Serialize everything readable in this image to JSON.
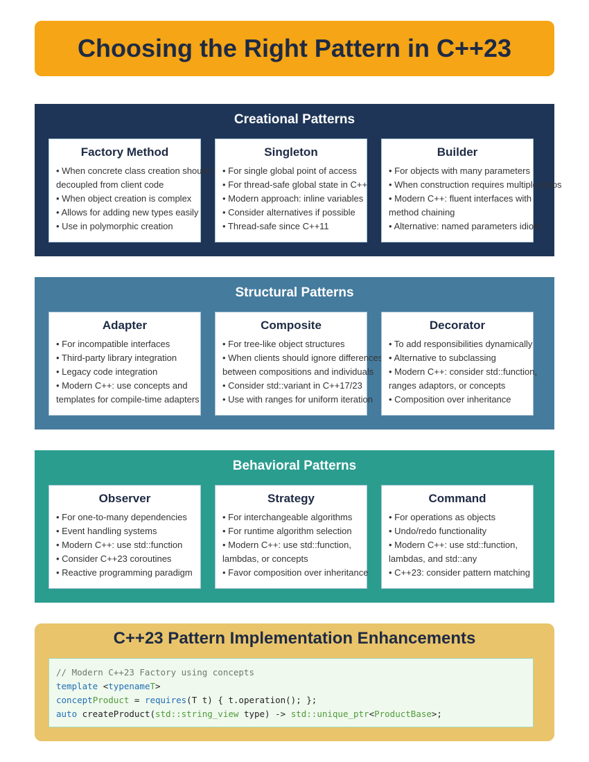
{
  "title": "Choosing the Right Pattern in C++23",
  "colors": {
    "title_banner": "#f5a515",
    "creational": "#1e3557",
    "structural": "#457b9d",
    "behavioral": "#2a9d8f",
    "enhancements": "#e9c46a"
  },
  "sections": [
    {
      "title": "Creational Patterns",
      "cards": [
        {
          "title": "Factory Method",
          "items": [
            "• When concrete class creation should be",
            "decoupled from client code",
            "• When object creation is complex",
            "• Allows for adding new types easily",
            "• Use in polymorphic creation"
          ]
        },
        {
          "title": "Singleton",
          "items": [
            "• For single global point of access",
            "• For thread-safe global state in C++",
            "• Modern approach: inline variables",
            "• Consider alternatives if possible",
            "• Thread-safe since C++11"
          ]
        },
        {
          "title": "Builder",
          "items": [
            "• For objects with many parameters",
            "• When construction requires multiple steps",
            "• Modern C++: fluent interfaces with",
            "method chaining",
            "• Alternative: named parameters idiom"
          ]
        }
      ]
    },
    {
      "title": "Structural Patterns",
      "cards": [
        {
          "title": "Adapter",
          "items": [
            "• For incompatible interfaces",
            "• Third-party library integration",
            "• Legacy code integration",
            "• Modern C++: use concepts and",
            "templates for compile-time adapters"
          ]
        },
        {
          "title": "Composite",
          "items": [
            "• For tree-like object structures",
            "• When clients should ignore differences",
            "between compositions and individuals",
            "• Consider std::variant in C++17/23",
            "• Use with ranges for uniform iteration"
          ]
        },
        {
          "title": "Decorator",
          "items": [
            "• To add responsibilities dynamically",
            "• Alternative to subclassing",
            "• Modern C++: consider std::function,",
            "ranges adaptors, or concepts",
            "• Composition over inheritance"
          ]
        }
      ]
    },
    {
      "title": "Behavioral Patterns",
      "cards": [
        {
          "title": "Observer",
          "items": [
            "• For one-to-many dependencies",
            "• Event handling systems",
            "• Modern C++: use std::function",
            "• Consider C++23 coroutines",
            "• Reactive programming paradigm"
          ]
        },
        {
          "title": "Strategy",
          "items": [
            "• For interchangeable algorithms",
            "• For runtime algorithm selection",
            "• Modern C++: use std::function,",
            "lambdas, or concepts",
            "• Favor composition over inheritance"
          ]
        },
        {
          "title": "Command",
          "items": [
            "• For operations as objects",
            "• Undo/redo functionality",
            "• Modern C++: use std::function,",
            "lambdas, and std::any",
            "• C++23: consider pattern matching"
          ]
        }
      ]
    }
  ],
  "enhancements": {
    "title": "C++23 Pattern Implementation Enhancements",
    "code": {
      "line1": "// Modern C++23 Factory using concepts",
      "line2": {
        "kw": "template",
        "rest1": " <",
        "kw2": "typename",
        "type": "T",
        "rest2": ">"
      },
      "line3": {
        "kw": "concept",
        "type": "Product",
        "rest1": " = ",
        "kw2": "requires",
        "rest2": "(T t) { t.operation(); };"
      },
      "line4": {
        "kw": "auto",
        "rest1": " createProduct(",
        "type1": "std::string_view",
        "rest2": " type) -> ",
        "type2": "std::unique_ptr",
        "rest3": "<",
        "type3": "ProductBase",
        "rest4": ">;"
      }
    }
  }
}
